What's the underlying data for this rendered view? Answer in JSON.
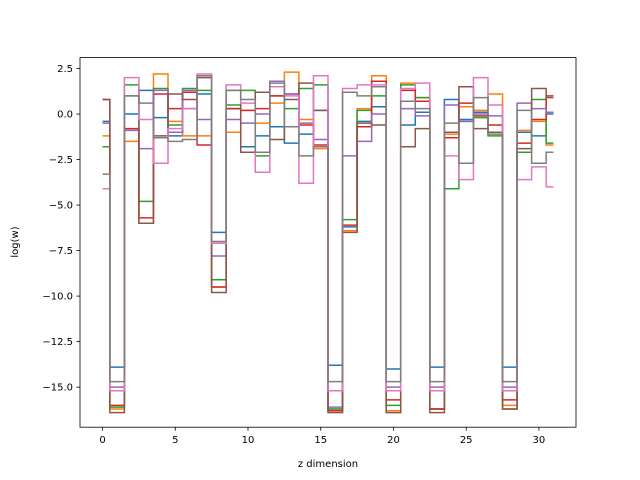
{
  "chart_data": {
    "type": "line",
    "drawstyle": "steps-mid",
    "xlabel": "z dimension",
    "ylabel": "log(w)",
    "xlim": [
      -1.55,
      32.55
    ],
    "ylim": [
      -17.2,
      3.1
    ],
    "xticks": [
      0,
      5,
      10,
      15,
      20,
      25,
      30
    ],
    "xtick_labels": [
      "0",
      "5",
      "10",
      "15",
      "20",
      "25",
      "30"
    ],
    "yticks": [
      2.5,
      0.0,
      -2.5,
      -5.0,
      -7.5,
      -10.0,
      -12.5,
      -15.0
    ],
    "ytick_labels": [
      "2.5",
      "0.0",
      "−2.5",
      "−5.0",
      "−7.5",
      "−10.0",
      "−12.5",
      "−15.0"
    ],
    "grid": false,
    "x": [
      0,
      1,
      2,
      3,
      4,
      5,
      6,
      7,
      8,
      9,
      10,
      11,
      12,
      13,
      14,
      15,
      16,
      17,
      18,
      19,
      20,
      21,
      22,
      23,
      24,
      25,
      26,
      27,
      28,
      29,
      30,
      31
    ],
    "series": [
      {
        "color": "#1f77b4",
        "values": [
          -0.4,
          -13.9,
          0.0,
          1.3,
          -0.2,
          -1.2,
          0.3,
          1.1,
          -6.5,
          0.3,
          -1.8,
          -1.2,
          -0.7,
          -1.6,
          -1.1,
          0.2,
          -13.8,
          -6.2,
          -0.4,
          0.4,
          -14.0,
          -0.6,
          0.1,
          -13.9,
          0.8,
          -0.3,
          0.1,
          -1.0,
          -13.9,
          -1.0,
          -1.2,
          0.0
        ]
      },
      {
        "color": "#ff7f0e",
        "values": [
          -1.2,
          -16.2,
          -1.5,
          -6.0,
          2.2,
          -0.4,
          -1.2,
          -1.2,
          -9.5,
          -1.0,
          0.2,
          -0.5,
          0.6,
          2.3,
          -0.3,
          -1.9,
          -16.2,
          -6.4,
          0.3,
          2.1,
          -16.3,
          1.7,
          0.9,
          -16.2,
          -1.1,
          0.4,
          0.2,
          1.1,
          -16.0,
          -0.9,
          -0.4,
          -1.7
        ]
      },
      {
        "color": "#2ca02c",
        "values": [
          -1.8,
          -16.1,
          1.6,
          -4.8,
          1.4,
          -0.6,
          1.4,
          1.3,
          -9.1,
          0.5,
          1.3,
          -2.3,
          1.0,
          0.3,
          1.4,
          1.6,
          -16.2,
          -5.8,
          0.2,
          1.0,
          -16.0,
          1.6,
          0.9,
          -16.2,
          -4.1,
          -0.4,
          -0.2,
          -1.2,
          -16.2,
          -2.1,
          0.8,
          -1.6
        ]
      },
      {
        "color": "#d62728",
        "values": [
          0.8,
          -16.0,
          -0.8,
          -5.7,
          1.1,
          0.3,
          1.2,
          -1.7,
          -9.5,
          0.3,
          0.2,
          0.3,
          1.0,
          1.1,
          -0.6,
          -1.7,
          -16.3,
          -6.1,
          -0.7,
          1.8,
          -15.7,
          1.3,
          0.7,
          -16.2,
          -1.3,
          0.6,
          -0.1,
          -0.6,
          -15.7,
          -1.6,
          -0.3,
          1.0
        ]
      },
      {
        "color": "#9467bd",
        "values": [
          -0.5,
          -15.0,
          -0.9,
          -1.9,
          1.3,
          -1.0,
          1.3,
          -0.3,
          -7.8,
          -0.3,
          -0.5,
          0.0,
          1.8,
          1.1,
          -0.5,
          -1.4,
          -16.1,
          -2.3,
          -1.5,
          0.0,
          -15.0,
          0.3,
          -0.1,
          -15.0,
          0.5,
          -0.4,
          0.0,
          -0.1,
          -15.0,
          0.6,
          0.3,
          0.1
        ]
      },
      {
        "color": "#8c564b",
        "values": [
          0.8,
          -16.4,
          1.0,
          -6.0,
          -1.2,
          1.1,
          0.8,
          2.0,
          -9.8,
          1.3,
          -2.1,
          1.2,
          -1.4,
          0.8,
          1.7,
          0.2,
          -16.4,
          -6.5,
          -0.5,
          -0.6,
          -16.4,
          -1.8,
          -0.8,
          -16.4,
          -1.0,
          1.5,
          -0.8,
          -1.0,
          -16.2,
          -1.9,
          1.4,
          0.9
        ]
      },
      {
        "color": "#e377c2",
        "values": [
          -4.1,
          -15.2,
          2.0,
          -0.3,
          -2.7,
          -0.8,
          0.3,
          2.2,
          -7.1,
          1.6,
          0.6,
          -3.2,
          1.5,
          1.0,
          -3.8,
          2.1,
          -15.2,
          1.4,
          1.6,
          1.6,
          -15.2,
          1.4,
          1.7,
          -15.2,
          -2.3,
          -3.6,
          2.0,
          0.5,
          -15.2,
          -3.6,
          -2.9,
          -4.0
        ]
      },
      {
        "color": "#7f7f7f",
        "values": [
          -3.3,
          -14.7,
          1.0,
          0.6,
          -1.3,
          -1.5,
          -1.4,
          2.1,
          -7.0,
          1.3,
          0.8,
          -2.1,
          1.7,
          -0.7,
          -2.3,
          -1.8,
          -14.7,
          1.2,
          1.0,
          1.5,
          -14.7,
          0.7,
          0.3,
          -14.7,
          -0.5,
          -2.7,
          0.9,
          -1.1,
          -14.7,
          0.2,
          -2.7,
          -2.1
        ]
      }
    ]
  }
}
